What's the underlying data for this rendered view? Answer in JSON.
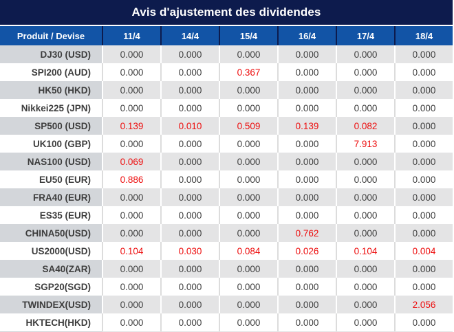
{
  "title": "Avis d'ajustement des dividendes",
  "table": {
    "product_header": "Produit / Devise",
    "date_headers": [
      "11/4",
      "14/4",
      "15/4",
      "16/4",
      "17/4",
      "18/4"
    ],
    "rows": [
      {
        "product": "DJ30 (USD)",
        "values": [
          "0.000",
          "0.000",
          "0.000",
          "0.000",
          "0.000",
          "0.000"
        ]
      },
      {
        "product": "SPI200 (AUD)",
        "values": [
          "0.000",
          "0.000",
          "0.367",
          "0.000",
          "0.000",
          "0.000"
        ]
      },
      {
        "product": "HK50 (HKD)",
        "values": [
          "0.000",
          "0.000",
          "0.000",
          "0.000",
          "0.000",
          "0.000"
        ]
      },
      {
        "product": "Nikkei225 (JPN)",
        "values": [
          "0.000",
          "0.000",
          "0.000",
          "0.000",
          "0.000",
          "0.000"
        ]
      },
      {
        "product": "SP500 (USD)",
        "values": [
          "0.139",
          "0.010",
          "0.509",
          "0.139",
          "0.082",
          "0.000"
        ]
      },
      {
        "product": "UK100 (GBP)",
        "values": [
          "0.000",
          "0.000",
          "0.000",
          "0.000",
          "7.913",
          "0.000"
        ]
      },
      {
        "product": "NAS100 (USD)",
        "values": [
          "0.069",
          "0.000",
          "0.000",
          "0.000",
          "0.000",
          "0.000"
        ]
      },
      {
        "product": "EU50 (EUR)",
        "values": [
          "0.886",
          "0.000",
          "0.000",
          "0.000",
          "0.000",
          "0.000"
        ]
      },
      {
        "product": "FRA40 (EUR)",
        "values": [
          "0.000",
          "0.000",
          "0.000",
          "0.000",
          "0.000",
          "0.000"
        ]
      },
      {
        "product": "ES35 (EUR)",
        "values": [
          "0.000",
          "0.000",
          "0.000",
          "0.000",
          "0.000",
          "0.000"
        ]
      },
      {
        "product": "CHINA50(USD)",
        "values": [
          "0.000",
          "0.000",
          "0.000",
          "0.762",
          "0.000",
          "0.000"
        ]
      },
      {
        "product": "US2000(USD)",
        "values": [
          "0.104",
          "0.030",
          "0.084",
          "0.026",
          "0.104",
          "0.004"
        ]
      },
      {
        "product": "SA40(ZAR)",
        "values": [
          "0.000",
          "0.000",
          "0.000",
          "0.000",
          "0.000",
          "0.000"
        ]
      },
      {
        "product": "SGP20(SGD)",
        "values": [
          "0.000",
          "0.000",
          "0.000",
          "0.000",
          "0.000",
          "0.000"
        ]
      },
      {
        "product": "TWINDEX(USD)",
        "values": [
          "0.000",
          "0.000",
          "0.000",
          "0.000",
          "0.000",
          "2.056"
        ]
      },
      {
        "product": "HKTECH(HKD)",
        "values": [
          "0.000",
          "0.000",
          "0.000",
          "0.000",
          "0.000",
          "0.000"
        ]
      }
    ],
    "zero_value": "0.000"
  },
  "colors": {
    "title_bg": "#0d1b4d",
    "header_bg": "#1254a6",
    "header_separator": "#0d1b4d",
    "row_gray_label_bg": "#d3d6da",
    "row_gray_value_bg": "#e4e4e5",
    "row_white_bg": "#ffffff",
    "text_dark": "#3d3d3d",
    "highlight_red": "#ed0c0c"
  }
}
